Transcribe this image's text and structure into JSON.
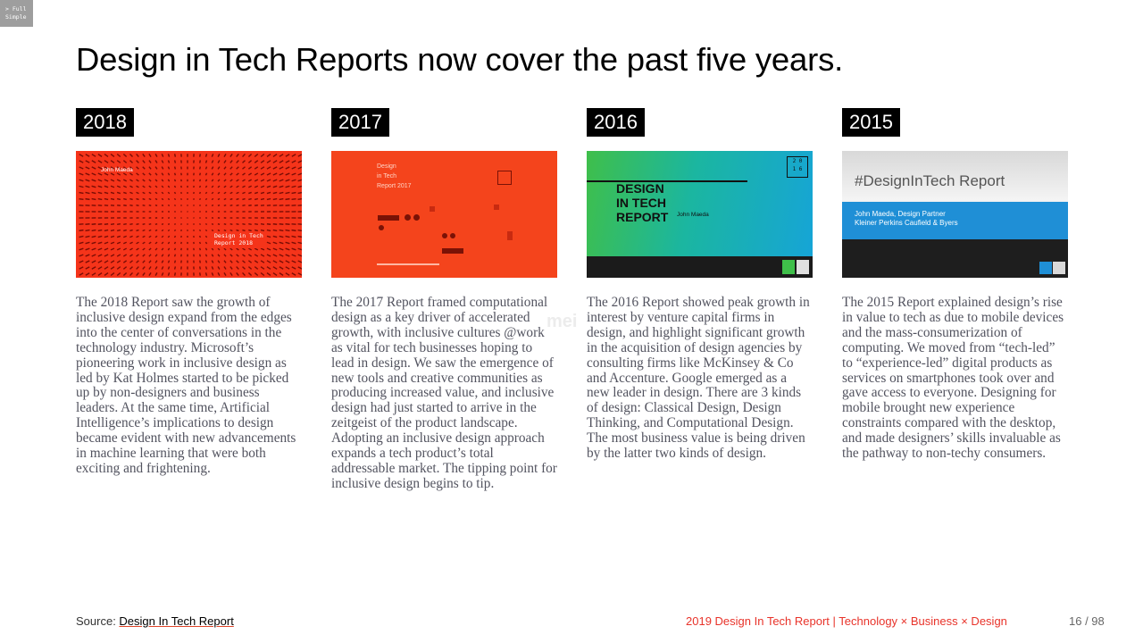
{
  "mode_toggle": {
    "line1": "> Full",
    "line2": "Simple"
  },
  "title": "Design in Tech Reports now cover the past five years.",
  "watermark": "mei",
  "reports": [
    {
      "year": "2018",
      "cover": {
        "author": "John Maeda",
        "title_line1": "Design in Tech",
        "title_line2": "Report 2018"
      },
      "text": "The 2018 Report saw the growth of inclusive design expand from the edges into the center of conversations in the technology industry. Microsoft’s pioneering work in inclusive design as led by Kat Holmes started to be picked up by non-designers and business leaders. At the same time, Artificial Intelligence’s implications to design became evident with new advancements in machine learning that were both exciting and frightening."
    },
    {
      "year": "2017",
      "cover": {
        "line1": "Design",
        "line2": "in Tech",
        "line3": "Report 2017"
      },
      "text": "The 2017 Report framed computational design as a key driver of accelerated growth, with inclusive cultures @work as vital for tech businesses hoping to lead in design. We saw the emergence of new tools and creative communities as producing increased value, and inclusive design had just started to arrive in the zeitgeist of the product landscape. Adopting an inclusive design approach expands a tech product’s total addressable market. The tipping point for inclusive design begins to tip."
    },
    {
      "year": "2016",
      "cover": {
        "line1": "DESIGN",
        "line2": "IN TECH",
        "line3": "REPORT",
        "badge_top": "2 0",
        "badge_bottom": "1 6",
        "author": "John Maeda"
      },
      "text": "The 2016 Report showed peak growth in interest by venture capital firms in design, and highlight significant growth in the acquisition of design agencies by consulting firms like McKinsey & Co and Accenture. Google emerged as a new leader in design. There are 3 kinds of design: Classical Design, Design Thinking, and Computational Design. The most business value is being driven by the latter two kinds of design."
    },
    {
      "year": "2015",
      "cover": {
        "title": "#DesignInTech Report",
        "line1": "John Maeda, Design Partner",
        "line2": "Kleiner Perkins Caufield & Byers"
      },
      "text": "The 2015 Report explained design’s rise in value to tech as due to mobile devices and the mass-consumerization of computing. We moved from “tech-led” to “experience-led” digital products as services on smartphones took over and gave access to everyone. Designing for mobile brought new experience constraints compared with the desktop, and made designers’ skills invaluable as the pathway to non-techy consumers."
    }
  ],
  "footer": {
    "source_label": "Source: ",
    "source_link": "Design In Tech Report",
    "tagline": "2019 Design In Tech Report | Technology × Business × Design",
    "page": "16 / 98"
  },
  "colors": {
    "accent": "#e8332a",
    "body_text": "#52535f",
    "year_bg": "#000000"
  }
}
